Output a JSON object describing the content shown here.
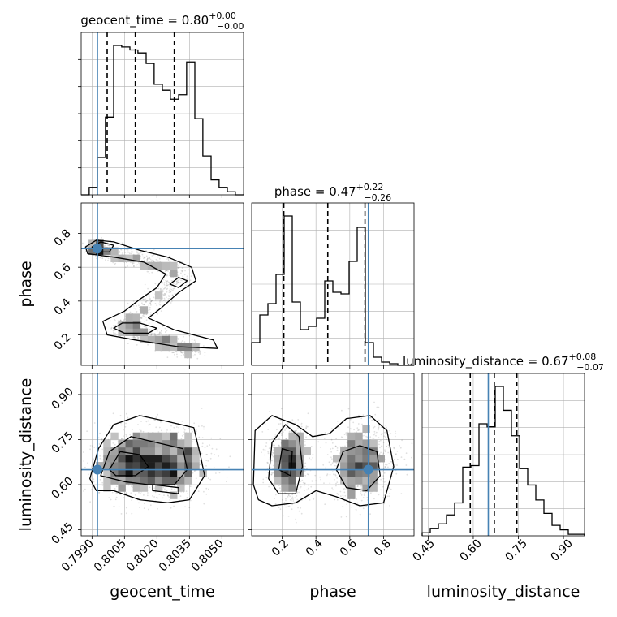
{
  "chart_data": {
    "type": "corner",
    "grid": true,
    "truth_color": "#4682b4",
    "panels": [
      {
        "kind": "hist",
        "param": "geocent_time",
        "title": {
          "prefix": "geocent_time = ",
          "median": "0.80",
          "plus": "+0.00",
          "minus": "−0.00"
        },
        "xlim": [
          0.7985,
          0.806
        ],
        "bin_edges": [
          0.7985,
          0.79887,
          0.79925,
          0.79962,
          0.8,
          0.80037,
          0.80075,
          0.80112,
          0.8015,
          0.80187,
          0.80225,
          0.80262,
          0.803,
          0.80337,
          0.80375,
          0.80412,
          0.8045,
          0.80487,
          0.80525,
          0.80562,
          0.806
        ],
        "counts": [
          0.0,
          0.05,
          0.25,
          0.52,
          1.0,
          0.99,
          0.97,
          0.95,
          0.88,
          0.74,
          0.7,
          0.64,
          0.67,
          0.89,
          0.51,
          0.26,
          0.1,
          0.05,
          0.02,
          0.0
        ],
        "quantiles": [
          0.7997,
          0.801,
          0.8028
        ],
        "truth": 0.79925,
        "xtick_values": [
          0.799,
          0.8005,
          0.802,
          0.8035,
          0.805
        ]
      },
      {
        "kind": "hist",
        "param": "phase",
        "title": {
          "prefix": "phase = ",
          "median": "0.47",
          "plus": "+0.22",
          "minus": "−0.26"
        },
        "xlim": [
          0.02,
          0.98
        ],
        "bin_edges": [
          0.02,
          0.068,
          0.116,
          0.164,
          0.212,
          0.26,
          0.308,
          0.356,
          0.404,
          0.452,
          0.5,
          0.548,
          0.596,
          0.644,
          0.692,
          0.74,
          0.788,
          0.836,
          0.884,
          0.932,
          0.98
        ],
        "counts": [
          0.14,
          0.31,
          0.38,
          0.56,
          0.92,
          0.39,
          0.22,
          0.24,
          0.29,
          0.52,
          0.45,
          0.44,
          0.64,
          0.85,
          0.14,
          0.05,
          0.02,
          0.01,
          0.0,
          0.0
        ],
        "quantiles": [
          0.21,
          0.47,
          0.69
        ],
        "truth": 0.71,
        "xtick_values": [
          0.2,
          0.4,
          0.6,
          0.8
        ]
      },
      {
        "kind": "hist",
        "param": "luminosity_distance",
        "title": {
          "prefix": "luminosity_distance = ",
          "median": "0.67",
          "plus": "+0.08",
          "minus": "−0.07"
        },
        "xlim": [
          0.43,
          0.97
        ],
        "bin_edges": [
          0.43,
          0.457,
          0.484,
          0.511,
          0.538,
          0.565,
          0.592,
          0.619,
          0.646,
          0.673,
          0.7,
          0.727,
          0.754,
          0.781,
          0.808,
          0.835,
          0.862,
          0.889,
          0.916,
          0.943,
          0.97
        ],
        "counts": [
          0.02,
          0.05,
          0.08,
          0.14,
          0.22,
          0.46,
          0.47,
          0.75,
          0.73,
          1.0,
          0.84,
          0.67,
          0.45,
          0.34,
          0.24,
          0.15,
          0.07,
          0.04,
          0.01,
          0.01
        ],
        "quantiles": [
          0.59,
          0.67,
          0.745
        ],
        "truth": 0.65,
        "xtick_values": [
          0.45,
          0.6,
          0.75,
          0.9
        ]
      }
    ],
    "pairs": [
      {
        "x": "geocent_time",
        "y": "phase",
        "xlim": [
          0.7985,
          0.806
        ],
        "ylim": [
          0.02,
          0.98
        ],
        "truth": [
          0.79925,
          0.71
        ],
        "ytick_values": [
          0.2,
          0.4,
          0.6,
          0.8
        ]
      },
      {
        "x": "geocent_time",
        "y": "luminosity_distance",
        "xlim": [
          0.7985,
          0.806
        ],
        "ylim": [
          0.43,
          0.97
        ],
        "truth": [
          0.79925,
          0.65
        ],
        "ytick_values": [
          0.45,
          0.6,
          0.75,
          0.9
        ]
      },
      {
        "x": "phase",
        "y": "luminosity_distance",
        "xlim": [
          0.02,
          0.98
        ],
        "ylim": [
          0.43,
          0.97
        ],
        "truth": [
          0.71,
          0.65
        ]
      }
    ],
    "tick_labels": {
      "geocent_time": [
        "0.7990",
        "0.8005",
        "0.8020",
        "0.8035",
        "0.8050"
      ],
      "phase": [
        "0.2",
        "0.4",
        "0.6",
        "0.8"
      ],
      "luminosity_distance": [
        "0.45",
        "0.60",
        "0.75",
        "0.90"
      ]
    },
    "axis_labels": {
      "x": [
        "geocent_time",
        "phase",
        "luminosity_distance"
      ],
      "y": [
        "phase",
        "luminosity_distance"
      ]
    }
  }
}
